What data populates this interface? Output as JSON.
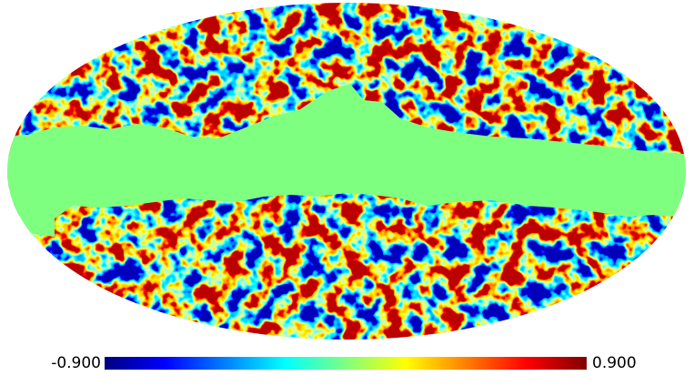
{
  "chart_data": {
    "type": "mollweide",
    "colormap": "jet",
    "clim": [
      -0.9,
      0.9
    ],
    "cticks": [
      {
        "value": -0.9,
        "label": "-0.900"
      },
      {
        "value": 0.9,
        "label": "0.900"
      }
    ]
  }
}
